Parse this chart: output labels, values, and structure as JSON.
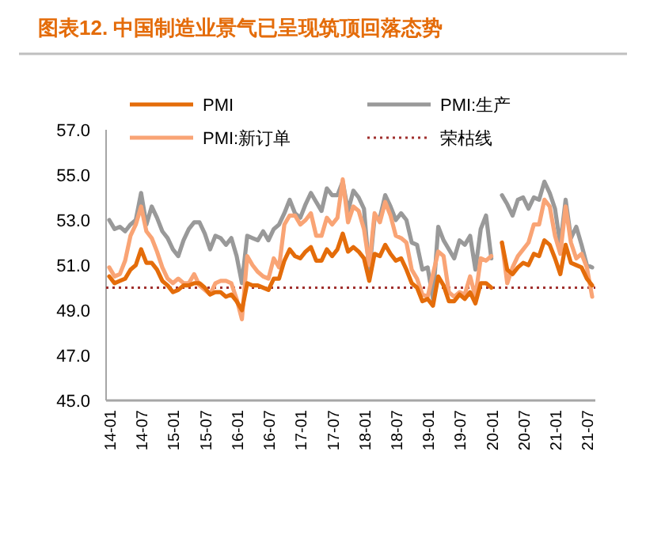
{
  "chart_data": {
    "type": "line",
    "title": "图表12.  中国制造业景气已呈现筑顶回落态势",
    "categories": [
      "14-01",
      null,
      null,
      null,
      null,
      null,
      "14-07",
      null,
      null,
      null,
      null,
      null,
      "15-01",
      null,
      null,
      null,
      null,
      null,
      "15-07",
      null,
      null,
      null,
      null,
      null,
      "16-01",
      null,
      null,
      null,
      null,
      null,
      "16-07",
      null,
      null,
      null,
      null,
      null,
      "17-01",
      null,
      null,
      null,
      null,
      null,
      "17-07",
      null,
      null,
      null,
      null,
      null,
      "18-01",
      null,
      null,
      null,
      null,
      null,
      "18-07",
      null,
      null,
      null,
      null,
      null,
      "19-01",
      null,
      null,
      null,
      null,
      null,
      "19-07",
      null,
      null,
      null,
      null,
      null,
      "20-01",
      null,
      null,
      null,
      null,
      null,
      "20-07",
      null,
      null,
      null,
      null,
      null,
      "21-01",
      null,
      null,
      null,
      null,
      null,
      "21-07",
      null
    ],
    "series": [
      {
        "name": "PMI",
        "color": "#e46c0a",
        "values": [
          50.5,
          50.2,
          50.3,
          50.4,
          50.8,
          51.0,
          51.7,
          51.1,
          51.1,
          50.8,
          50.3,
          50.1,
          49.8,
          49.9,
          50.1,
          50.1,
          50.2,
          50.2,
          50.0,
          49.7,
          49.8,
          49.8,
          49.6,
          49.7,
          49.4,
          49.0,
          50.2,
          50.1,
          50.1,
          50.0,
          49.9,
          50.4,
          50.4,
          51.2,
          51.7,
          51.4,
          51.3,
          51.6,
          51.8,
          51.2,
          51.2,
          51.7,
          51.4,
          51.7,
          52.4,
          51.6,
          51.8,
          51.6,
          51.3,
          50.3,
          51.5,
          51.4,
          51.9,
          51.5,
          51.2,
          51.3,
          50.8,
          50.2,
          50.0,
          49.4,
          49.5,
          49.2,
          50.5,
          50.1,
          49.4,
          49.4,
          49.7,
          49.5,
          49.8,
          49.3,
          50.2,
          50.2,
          50.0,
          null,
          52.0,
          50.8,
          50.6,
          50.9,
          51.1,
          51.0,
          51.5,
          51.4,
          52.1,
          51.9,
          51.3,
          50.6,
          51.9,
          51.1,
          51.0,
          50.9,
          50.4,
          50.1
        ]
      },
      {
        "name": "PMI:生产",
        "color": "#999999",
        "values": [
          53.0,
          52.6,
          52.7,
          52.5,
          52.8,
          53.0,
          54.2,
          52.8,
          53.6,
          53.1,
          52.5,
          52.2,
          51.7,
          51.4,
          52.1,
          52.6,
          52.9,
          52.9,
          52.4,
          51.7,
          52.3,
          52.2,
          51.9,
          52.2,
          51.4,
          50.2,
          52.3,
          52.2,
          52.1,
          52.5,
          52.1,
          52.6,
          52.8,
          53.3,
          53.9,
          53.3,
          53.1,
          53.7,
          54.2,
          53.8,
          53.4,
          54.4,
          54.1,
          54.1,
          54.7,
          53.4,
          54.3,
          54.0,
          53.5,
          50.7,
          53.1,
          53.1,
          54.1,
          53.6,
          53.0,
          53.3,
          53.0,
          52.0,
          51.9,
          50.8,
          50.9,
          49.5,
          52.7,
          52.1,
          51.7,
          51.3,
          52.1,
          51.9,
          52.3,
          50.8,
          52.6,
          53.2,
          51.3,
          null,
          54.1,
          53.7,
          53.2,
          53.9,
          54.0,
          53.5,
          54.0,
          53.9,
          54.7,
          54.2,
          53.5,
          51.9,
          53.9,
          52.2,
          52.7,
          51.9,
          51.0,
          50.9
        ]
      },
      {
        "name": "PMI:新订单",
        "color": "#f9a475",
        "values": [
          50.9,
          50.5,
          50.6,
          51.2,
          52.3,
          52.8,
          53.6,
          52.5,
          52.2,
          51.6,
          50.9,
          50.4,
          50.2,
          50.4,
          50.2,
          50.2,
          50.6,
          50.1,
          49.9,
          49.7,
          50.2,
          50.3,
          50.3,
          50.2,
          49.5,
          48.6,
          51.4,
          51.0,
          50.7,
          50.5,
          50.4,
          51.3,
          50.9,
          52.8,
          53.2,
          53.2,
          52.8,
          53.0,
          53.3,
          52.3,
          52.3,
          53.1,
          52.8,
          53.1,
          54.8,
          52.9,
          53.6,
          53.4,
          52.6,
          51.0,
          53.3,
          52.9,
          53.8,
          53.2,
          52.3,
          52.2,
          52.0,
          50.8,
          50.4,
          49.7,
          49.6,
          50.6,
          51.6,
          51.4,
          49.8,
          49.6,
          49.8,
          49.7,
          50.5,
          49.6,
          51.3,
          51.2,
          51.4,
          null,
          52.0,
          50.2,
          50.9,
          51.4,
          51.7,
          52.0,
          52.8,
          52.8,
          53.9,
          53.6,
          52.3,
          51.5,
          53.6,
          52.0,
          51.3,
          51.5,
          50.9,
          49.6
        ]
      }
    ],
    "ref_lines": [
      {
        "axis": "y",
        "value": 50,
        "label": "荣枯线",
        "color": "#a0302e",
        "line_style": "dotted"
      }
    ],
    "ylim": [
      45,
      57
    ],
    "yticks": [
      {
        "value": 45,
        "label": "45.0"
      },
      {
        "value": 47,
        "label": "47.0"
      },
      {
        "value": 49,
        "label": "49.0"
      },
      {
        "value": 51,
        "label": "51.0"
      },
      {
        "value": 53,
        "label": "53.0"
      },
      {
        "value": 55,
        "label": "55.0"
      },
      {
        "value": 57,
        "label": "57.0"
      }
    ],
    "legend": "top",
    "grid": false,
    "marker": "none",
    "line_style": "solid"
  }
}
